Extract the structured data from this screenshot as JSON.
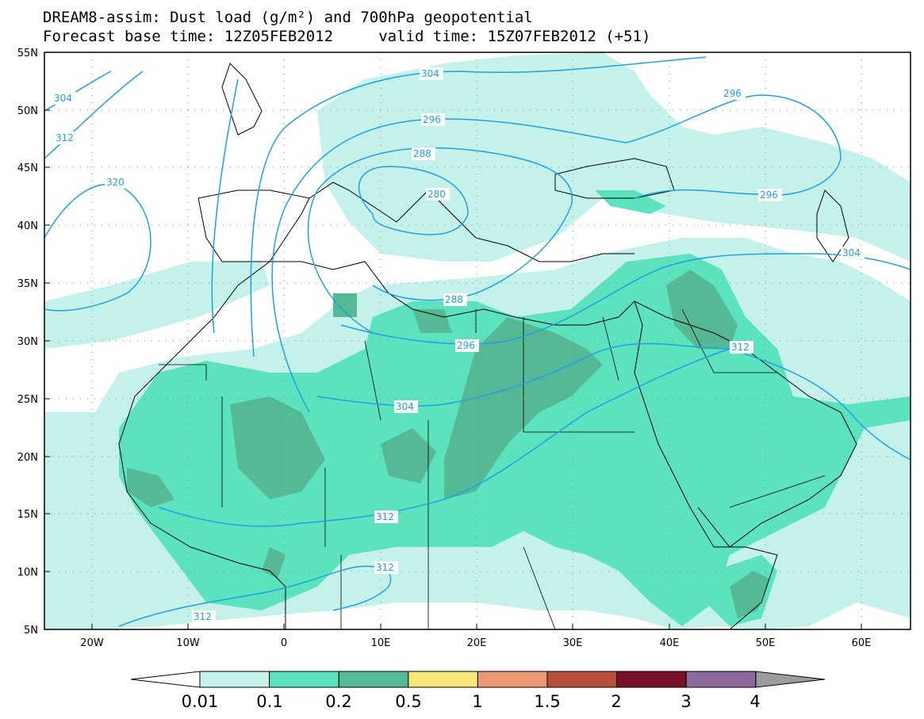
{
  "title": {
    "line1": "DREAM8-assim: Dust load (g/m²) and 700hPa geopotential",
    "line2": "Forecast base time: 12Z05FEB2012     valid time: 15Z07FEB2012 (+51)"
  },
  "map": {
    "lat_labels": [
      "55N",
      "50N",
      "45N",
      "40N",
      "35N",
      "30N",
      "25N",
      "20N",
      "15N",
      "10N",
      "5N"
    ],
    "lon_labels": [
      "20W",
      "10W",
      "0",
      "10E",
      "20E",
      "30E",
      "40E",
      "50E",
      "60E"
    ],
    "extent": {
      "lon": [
        -25,
        65
      ],
      "lat": [
        5,
        55
      ]
    }
  },
  "contours": {
    "label_304_nw": "304",
    "label_312_nw": "312",
    "label_320": "320",
    "label_304_n": "304",
    "label_296_n": "296",
    "label_288_c": "288",
    "label_280": "280",
    "label_288_s": "288",
    "label_296_s": "296",
    "label_304_s": "304",
    "label_296_ne": "296",
    "label_296_e": "296",
    "label_304_e": "304",
    "label_312_e": "312",
    "label_312_s": "312",
    "label_312_sw": "312",
    "label_312_ssw": "312"
  },
  "colorbar": {
    "labels": [
      "0.01",
      "0.1",
      "0.2",
      "0.5",
      "1",
      "1.5",
      "2",
      "3",
      "4"
    ],
    "colors": [
      "#c4f2ea",
      "#5ce3be",
      "#55b996",
      "#f5e77a",
      "#ec9a73",
      "#b8503b",
      "#7a0f2c",
      "#8e6a9e",
      "#9c9c9c"
    ],
    "below_color": "#ffffff",
    "above_color": "#9c9c9c"
  },
  "colors": {
    "contour": "#1fa0e6",
    "coast": "#000000"
  }
}
